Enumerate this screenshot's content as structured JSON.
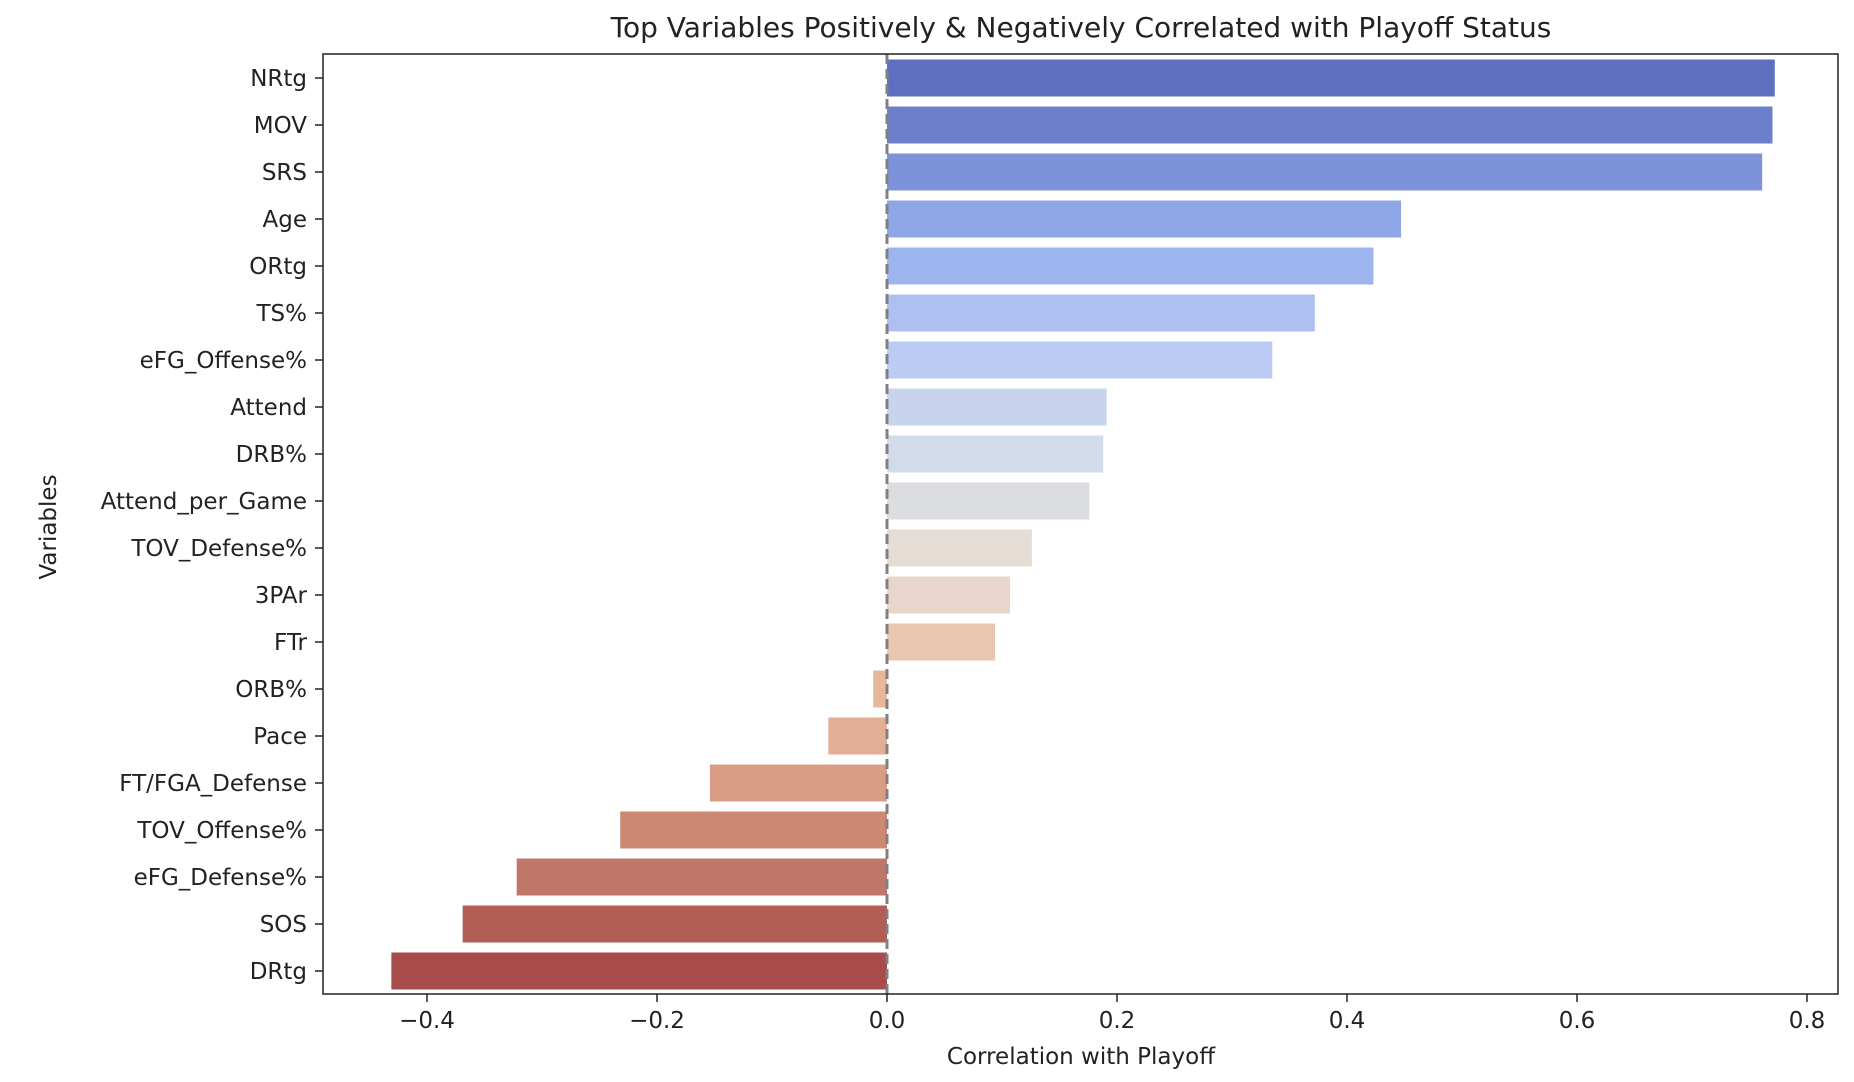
{
  "chart_data": {
    "type": "bar",
    "orientation": "horizontal",
    "title": "Top Variables Positively & Negatively Correlated with Playoff Status",
    "xlabel": "Correlation with Playoff",
    "ylabel": "Variables",
    "xlim": [
      -0.49,
      0.83
    ],
    "xticks": [
      -0.4,
      -0.2,
      0.0,
      0.2,
      0.4,
      0.6,
      0.8
    ],
    "xtick_labels": [
      "−0.4",
      "−0.2",
      "0.0",
      "0.2",
      "0.4",
      "0.6",
      "0.8"
    ],
    "grid": false,
    "legend": "none",
    "reference_line": {
      "x": 0.0,
      "style": "dashed",
      "color": "#808080"
    },
    "categories": [
      "NRtg",
      "MOV",
      "SRS",
      "Age",
      "ORtg",
      "TS%",
      "eFG_Offense%",
      "Attend",
      "DRB%",
      "Attend_per_Game",
      "TOV_Defense%",
      "3PAr",
      "FTr",
      "ORB%",
      "Pace",
      "FT/FGA_Defense",
      "TOV_Offense%",
      "eFG_Defense%",
      "SOS",
      "DRtg"
    ],
    "values": [
      0.772,
      0.77,
      0.761,
      0.447,
      0.423,
      0.372,
      0.335,
      0.191,
      0.188,
      0.176,
      0.126,
      0.107,
      0.094,
      -0.012,
      -0.051,
      -0.154,
      -0.232,
      -0.322,
      -0.369,
      -0.431
    ],
    "colors": [
      "#5f6fbf",
      "#6d7fcb",
      "#7d92da",
      "#8ea6e6",
      "#9db5ee",
      "#adc0f1",
      "#bccbf3",
      "#c8d4ee",
      "#d2dbea",
      "#dcdde0",
      "#e5dcd6",
      "#e9d5cb",
      "#e9c6b2",
      "#e8b89d",
      "#e2ae95",
      "#d99c84",
      "#cb8873",
      "#bf776a",
      "#b15c55",
      "#a74b4b"
    ]
  }
}
